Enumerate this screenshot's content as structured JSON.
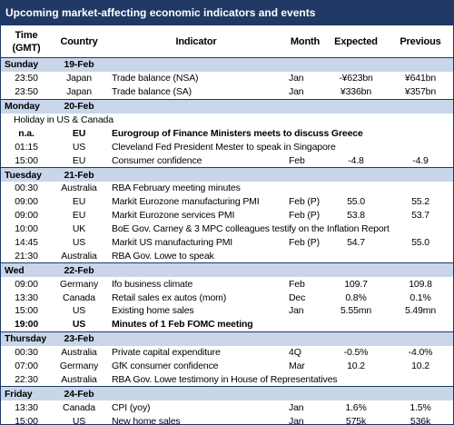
{
  "title": "Upcoming market-affecting economic indicators and events",
  "columns": [
    "Time (GMT)",
    "Country",
    "Indicator",
    "Month",
    "Expected",
    "Previous"
  ],
  "days": [
    {
      "day": "Sunday",
      "date": "19-Feb",
      "events": [
        {
          "time": "23:50",
          "country": "Japan",
          "indicator": "Trade balance (NSA)",
          "month": "Jan",
          "expected": "-¥623bn",
          "previous": "¥641bn"
        },
        {
          "time": "23:50",
          "country": "Japan",
          "indicator": "Trade balance (SA)",
          "month": "Jan",
          "expected": "¥336bn",
          "previous": "¥357bn"
        }
      ]
    },
    {
      "day": "Monday",
      "date": "20-Feb",
      "note": "Holiday in US & Canada",
      "events": [
        {
          "time": "n.a.",
          "country": "EU",
          "indicator": "Eurogroup of Finance Ministers meets to discuss Greece",
          "bold": true
        },
        {
          "time": "01:15",
          "country": "US",
          "indicator": "Cleveland Fed President Mester to speak in Singapore"
        },
        {
          "time": "15:00",
          "country": "EU",
          "indicator": "Consumer confidence",
          "month": "Feb",
          "expected": "-4.8",
          "previous": "-4.9"
        }
      ]
    },
    {
      "day": "Tuesday",
      "date": "21-Feb",
      "events": [
        {
          "time": "00:30",
          "country": "Australia",
          "indicator": "RBA February meeting minutes"
        },
        {
          "time": "09:00",
          "country": "EU",
          "indicator": "Markit Eurozone manufacturing PMI",
          "month": "Feb (P)",
          "expected": "55.0",
          "previous": "55.2"
        },
        {
          "time": "09:00",
          "country": "EU",
          "indicator": "Markit Eurozone services PMI",
          "month": "Feb (P)",
          "expected": "53.8",
          "previous": "53.7"
        },
        {
          "time": "10:00",
          "country": "UK",
          "indicator": "BoE Gov. Carney & 3 MPC colleagues testify on the Inflation Report"
        },
        {
          "time": "14:45",
          "country": "US",
          "indicator": "Markit US manufacturing PMI",
          "month": "Feb (P)",
          "expected": "54.7",
          "previous": "55.0"
        },
        {
          "time": "21:30",
          "country": "Australia",
          "indicator": "RBA Gov. Lowe to speak"
        }
      ]
    },
    {
      "day": "Wed",
      "date": "22-Feb",
      "events": [
        {
          "time": "09:00",
          "country": "Germany",
          "indicator": "Ifo business climate",
          "month": "Feb",
          "expected": "109.7",
          "previous": "109.8"
        },
        {
          "time": "13:30",
          "country": "Canada",
          "indicator": "Retail sales ex autos (mom)",
          "month": "Dec",
          "expected": "0.8%",
          "previous": "0.1%"
        },
        {
          "time": "15:00",
          "country": "US",
          "indicator": "Existing home sales",
          "month": "Jan",
          "expected": "5.55mn",
          "previous": "5.49mn"
        },
        {
          "time": "19:00",
          "country": "US",
          "indicator": "Minutes of 1 Feb FOMC meeting",
          "bold": true
        }
      ]
    },
    {
      "day": "Thursday",
      "date": "23-Feb",
      "events": [
        {
          "time": "00:30",
          "country": "Australia",
          "indicator": "Private capital expenditure",
          "month": "4Q",
          "expected": "-0.5%",
          "previous": "-4.0%"
        },
        {
          "time": "07:00",
          "country": "Germany",
          "indicator": "GfK consumer confidence",
          "month": "Mar",
          "expected": "10.2",
          "previous": "10.2"
        },
        {
          "time": "22:30",
          "country": "Australia",
          "indicator": "RBA Gov. Lowe testimony in House of Representatives"
        }
      ]
    },
    {
      "day": "Friday",
      "date": "24-Feb",
      "events": [
        {
          "time": "13:30",
          "country": "Canada",
          "indicator": "CPI (yoy)",
          "month": "Jan",
          "expected": "1.6%",
          "previous": "1.5%"
        },
        {
          "time": "15:00",
          "country": "US",
          "indicator": "New home sales",
          "month": "Jan",
          "expected": "575k",
          "previous": "536k"
        }
      ]
    }
  ]
}
